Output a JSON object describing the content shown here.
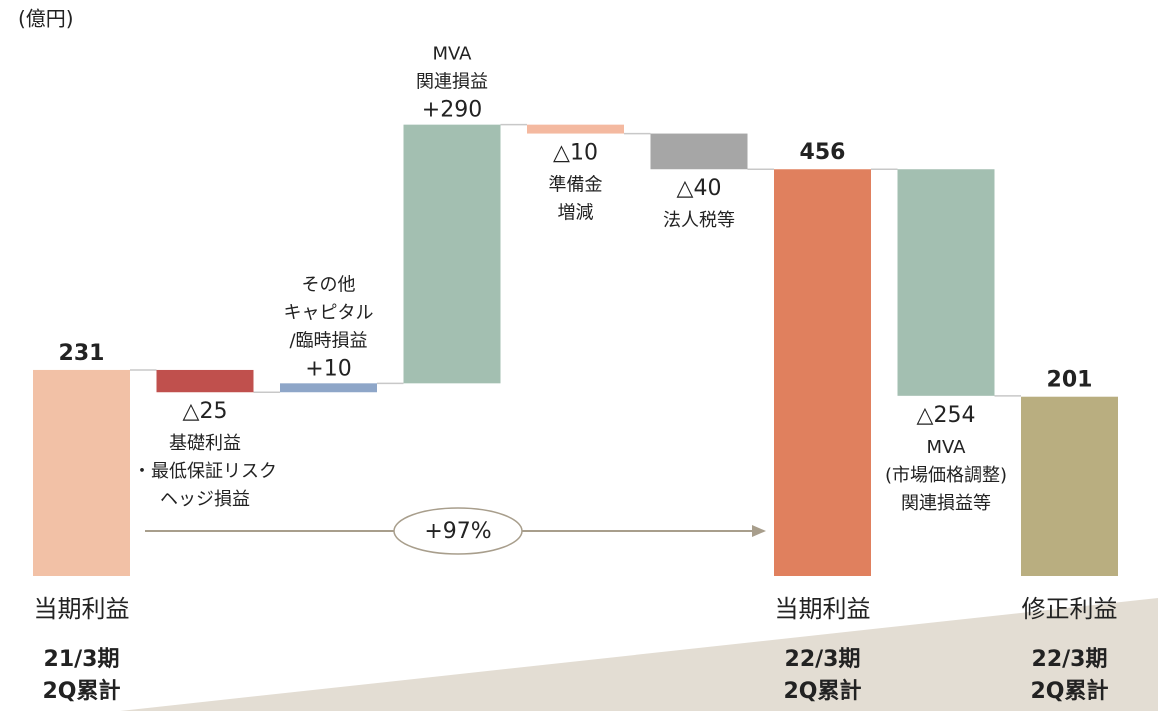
{
  "chart_data": {
    "type": "waterfall",
    "unit": "(億円)",
    "categories": [
      [
        "当期利益",
        "21/3期",
        "2Q累計"
      ],
      [
        "基礎利益",
        "・最低保証リスク",
        "ヘッジ損益"
      ],
      [
        "その他",
        "キャピタル",
        "/臨時損益"
      ],
      [
        "MVA",
        "関連損益"
      ],
      [
        "準備金",
        "増減"
      ],
      [
        "法人税等"
      ],
      [
        "当期利益",
        "22/3期",
        "2Q累計"
      ],
      [
        "MVA",
        "(市場価格調整)",
        "関連損益等"
      ],
      [
        "修正利益",
        "22/3期",
        "2Q累計"
      ]
    ],
    "measure": [
      "total",
      "relative",
      "relative",
      "relative",
      "relative",
      "relative",
      "total",
      "relative",
      "total"
    ],
    "values": [
      231,
      -25,
      10,
      290,
      -10,
      -40,
      456,
      -254,
      201
    ],
    "value_labels": [
      "231",
      "△25",
      "+10",
      "+290",
      "△10",
      "△40",
      "456",
      "△254",
      "201"
    ],
    "colors": [
      "#f2c1a6",
      "#c0504d",
      "#8ea6c8",
      "#a3bfb1",
      "#f4b9a0",
      "#a6a6a6",
      "#e0805e",
      "#a3bfb1",
      "#b9ae80"
    ],
    "annotation": "+97%"
  }
}
